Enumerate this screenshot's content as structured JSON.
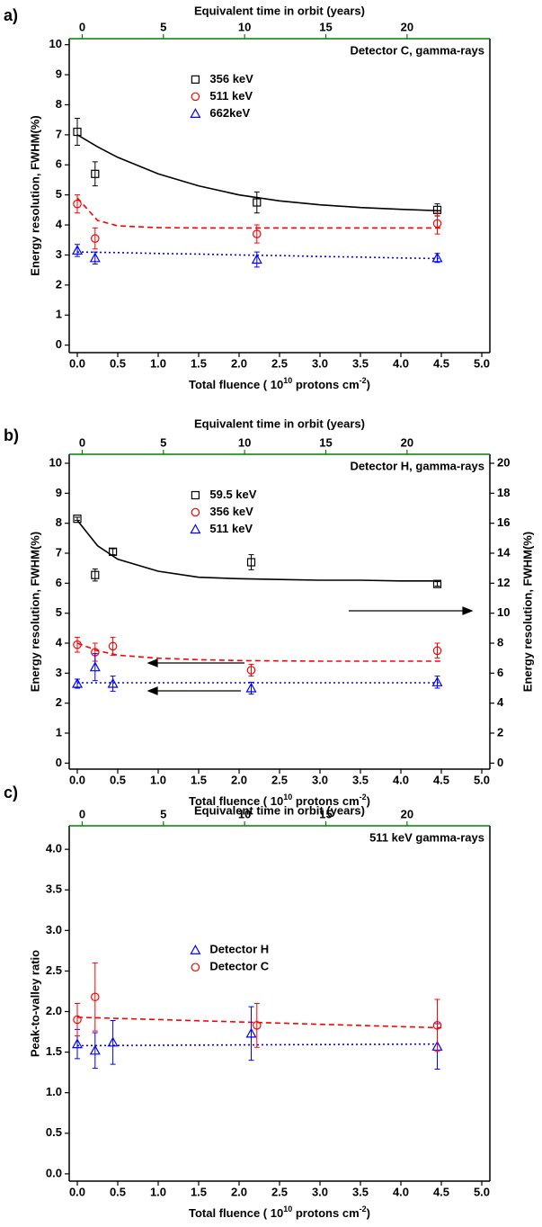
{
  "chart_data": [
    {
      "type": "scatter",
      "panel_label": "a)",
      "x2label": "Equivalent time in orbit (years)",
      "xlabel": [
        "Total fluence ( 10",
        "10",
        " protons cm",
        "-2",
        ")"
      ],
      "ylabel": "Energy resolution, FWHM(%)",
      "annotation": "Detector C, gamma-rays",
      "legend": "upper left",
      "xlim": [
        -0.1,
        5.1
      ],
      "x2lim": [
        -0.8,
        25.1
      ],
      "ylim": [
        -0.25,
        10.2
      ],
      "xticks": [
        {
          "value": 0,
          "label": "0.0"
        },
        {
          "value": 0.5,
          "label": "0.5"
        },
        {
          "value": 1,
          "label": "1.0"
        },
        {
          "value": 1.5,
          "label": "1.5"
        },
        {
          "value": 2,
          "label": "2.0"
        },
        {
          "value": 2.5,
          "label": "2.5"
        },
        {
          "value": 3,
          "label": "3.0"
        },
        {
          "value": 3.5,
          "label": "3.5"
        },
        {
          "value": 4,
          "label": "4.0"
        },
        {
          "value": 4.5,
          "label": "4.5"
        },
        {
          "value": 5,
          "label": "5.0"
        }
      ],
      "x2ticks": [
        0,
        5,
        10,
        15,
        20
      ],
      "yticks": [
        0,
        1,
        2,
        3,
        4,
        5,
        6,
        7,
        8,
        9,
        10
      ],
      "series": [
        {
          "name": "356 keV",
          "color": "#000000",
          "marker": "square",
          "x": [
            0,
            0.22,
            2.22,
            4.45
          ],
          "values": [
            7.1,
            5.7,
            4.75,
            4.5
          ],
          "errors": [
            0.45,
            0.4,
            0.35,
            0.2
          ]
        },
        {
          "name": "511 keV",
          "color": "#ff0000",
          "marker": "circle",
          "x": [
            0,
            0.22,
            2.22,
            4.45
          ],
          "values": [
            4.7,
            3.55,
            3.7,
            4.05
          ],
          "errors": [
            0.3,
            0.35,
            0.3,
            0.35
          ]
        },
        {
          "name": "662keV",
          "color": "#0000ff",
          "marker": "triangle",
          "x": [
            0,
            0.22,
            2.22,
            4.45
          ],
          "values": [
            3.15,
            2.9,
            2.85,
            2.9
          ],
          "errors": [
            0.2,
            0.2,
            0.25,
            0.15
          ]
        }
      ],
      "fits": [
        {
          "color": "#000000",
          "style": "solid",
          "x": [
            0,
            0.25,
            0.5,
            1,
            1.5,
            2,
            2.5,
            3,
            3.5,
            4,
            4.5
          ],
          "values": [
            7.0,
            6.6,
            6.25,
            5.7,
            5.3,
            5.0,
            4.8,
            4.67,
            4.58,
            4.52,
            4.47
          ]
        },
        {
          "color": "#ff0000",
          "style": "dashed",
          "x": [
            0,
            0.25,
            0.5,
            1,
            1.5,
            2,
            2.5,
            3,
            3.5,
            4,
            4.5
          ],
          "values": [
            4.9,
            4.15,
            3.97,
            3.91,
            3.9,
            3.9,
            3.9,
            3.9,
            3.9,
            3.9,
            3.9
          ]
        },
        {
          "color": "#0000ff",
          "style": "dotted",
          "x": [
            0,
            0.5,
            1,
            1.5,
            2,
            2.5,
            3,
            3.5,
            4,
            4.5
          ],
          "values": [
            3.1,
            3.08,
            3.05,
            3.03,
            3.0,
            2.98,
            2.95,
            2.93,
            2.9,
            2.88
          ]
        }
      ]
    },
    {
      "type": "scatter",
      "panel_label": "b)",
      "x2label": "Equivalent time in orbit (years)",
      "xlabel": [
        "Total fluence ( 10",
        "10",
        " protons cm",
        "-2",
        ")"
      ],
      "ylabel": "Energy resolution, FWHM(%)",
      "y2label": "Energy resolution, FWHM(%)",
      "annotation": "Detector H, gamma-rays",
      "legend": "upper left",
      "xlim": [
        -0.1,
        5.1
      ],
      "x2lim": [
        -0.8,
        25.1
      ],
      "ylim": [
        -0.2,
        10.3
      ],
      "y2lim": [
        -0.4,
        20.6
      ],
      "xticks": [
        {
          "value": 0,
          "label": "0.0"
        },
        {
          "value": 0.5,
          "label": "0.5"
        },
        {
          "value": 1,
          "label": "1.0"
        },
        {
          "value": 1.5,
          "label": "1.5"
        },
        {
          "value": 2,
          "label": "2.0"
        },
        {
          "value": 2.5,
          "label": "2.5"
        },
        {
          "value": 3,
          "label": "3.0"
        },
        {
          "value": 3.5,
          "label": "3.5"
        },
        {
          "value": 4,
          "label": "4.0"
        },
        {
          "value": 4.5,
          "label": "4.5"
        },
        {
          "value": 5,
          "label": "5.0"
        }
      ],
      "x2ticks": [
        0,
        5,
        10,
        15,
        20
      ],
      "yticks": [
        0,
        1,
        2,
        3,
        4,
        5,
        6,
        7,
        8,
        9,
        10
      ],
      "y2ticks": [
        0,
        2,
        4,
        6,
        8,
        10,
        12,
        14,
        16,
        18,
        20
      ],
      "series": [
        {
          "name": "59.5 keV",
          "color": "#000000",
          "marker": "square",
          "axis": "y2",
          "x": [
            0,
            0.22,
            0.44,
            2.15,
            4.45
          ],
          "values": [
            16.3,
            12.55,
            14.1,
            13.4,
            11.95
          ],
          "errors": [
            0.1,
            0.4,
            0.2,
            0.5,
            0.15
          ]
        },
        {
          "name": "356 keV",
          "color": "#ff0000",
          "marker": "circle",
          "x": [
            0,
            0.22,
            0.44,
            2.15,
            4.45
          ],
          "values": [
            3.95,
            3.7,
            3.9,
            3.1,
            3.75
          ],
          "errors": [
            0.25,
            0.3,
            0.3,
            0.2,
            0.25
          ]
        },
        {
          "name": "511 keV",
          "color": "#0000ff",
          "marker": "triangle",
          "x": [
            0,
            0.22,
            0.44,
            2.15,
            4.45
          ],
          "values": [
            2.65,
            3.2,
            2.65,
            2.5,
            2.7
          ],
          "errors": [
            0.15,
            0.45,
            0.25,
            0.2,
            0.2
          ]
        }
      ],
      "fits": [
        {
          "color": "#000000",
          "style": "solid",
          "axis": "y2",
          "x": [
            0,
            0.25,
            0.5,
            1,
            1.5,
            2,
            2.5,
            3,
            3.5,
            4,
            4.5
          ],
          "values": [
            16.2,
            14.5,
            13.6,
            12.8,
            12.4,
            12.3,
            12.25,
            12.2,
            12.2,
            12.15,
            12.15
          ]
        },
        {
          "color": "#ff0000",
          "style": "dashed",
          "x": [
            0,
            0.25,
            0.5,
            1,
            1.5,
            2,
            2.5,
            3,
            3.5,
            4,
            4.5
          ],
          "values": [
            4.0,
            3.75,
            3.6,
            3.5,
            3.45,
            3.42,
            3.41,
            3.4,
            3.4,
            3.4,
            3.4
          ]
        },
        {
          "color": "#0000ff",
          "style": "dotted",
          "x": [
            0,
            4.5
          ],
          "values": [
            2.68,
            2.68
          ]
        }
      ]
    },
    {
      "type": "scatter",
      "panel_label": "c)",
      "x2label": "Equivalent time in orbit (years)",
      "xlabel": [
        "Total fluence ( 10",
        "10",
        " protons cm",
        "-2",
        ")"
      ],
      "ylabel": "Peak-to-valley ratio",
      "annotation": "511 keV gamma-rays",
      "legend": "center left",
      "xlim": [
        -0.1,
        5.1
      ],
      "x2lim": [
        -0.8,
        25.1
      ],
      "ylim": [
        -0.09,
        4.29
      ],
      "xticks": [
        {
          "value": 0,
          "label": "0.0"
        },
        {
          "value": 0.5,
          "label": "0.5"
        },
        {
          "value": 1,
          "label": "1.0"
        },
        {
          "value": 1.5,
          "label": "1.5"
        },
        {
          "value": 2,
          "label": "2.0"
        },
        {
          "value": 2.5,
          "label": "2.5"
        },
        {
          "value": 3,
          "label": "3.0"
        },
        {
          "value": 3.5,
          "label": "3.5"
        },
        {
          "value": 4,
          "label": "4.0"
        },
        {
          "value": 4.5,
          "label": "4.5"
        },
        {
          "value": 5,
          "label": "5.0"
        }
      ],
      "x2ticks": [
        0,
        5,
        10,
        15,
        20
      ],
      "yticks": [
        {
          "value": 0,
          "label": "0.0"
        },
        {
          "value": 0.5,
          "label": "0.5"
        },
        {
          "value": 1,
          "label": "1.0"
        },
        {
          "value": 1.5,
          "label": "1.5"
        },
        {
          "value": 2,
          "label": "2.0"
        },
        {
          "value": 2.5,
          "label": "2.5"
        },
        {
          "value": 3,
          "label": "3.0"
        },
        {
          "value": 3.5,
          "label": "3.5"
        },
        {
          "value": 4,
          "label": "4.0"
        }
      ],
      "series": [
        {
          "name": "Detector H",
          "color": "#0000ff",
          "marker": "triangle",
          "x": [
            0,
            0.22,
            0.44,
            2.15,
            4.45
          ],
          "values": [
            1.6,
            1.52,
            1.62,
            1.73,
            1.57
          ],
          "errors": [
            0.18,
            0.22,
            0.27,
            0.33,
            0.28
          ]
        },
        {
          "name": "Detector C",
          "color": "#ff0000",
          "marker": "circle",
          "x": [
            0,
            0.22,
            2.22,
            4.45
          ],
          "values": [
            1.9,
            2.18,
            1.83,
            1.83
          ],
          "errors": [
            0.2,
            0.42,
            0.27,
            0.32
          ]
        }
      ],
      "fits": [
        {
          "color": "#ff0000",
          "style": "dashed",
          "x": [
            0,
            4.5
          ],
          "values": [
            1.93,
            1.8
          ]
        },
        {
          "color": "#0000ff",
          "style": "dotted",
          "x": [
            0,
            4.5
          ],
          "values": [
            1.58,
            1.6
          ]
        }
      ]
    }
  ]
}
